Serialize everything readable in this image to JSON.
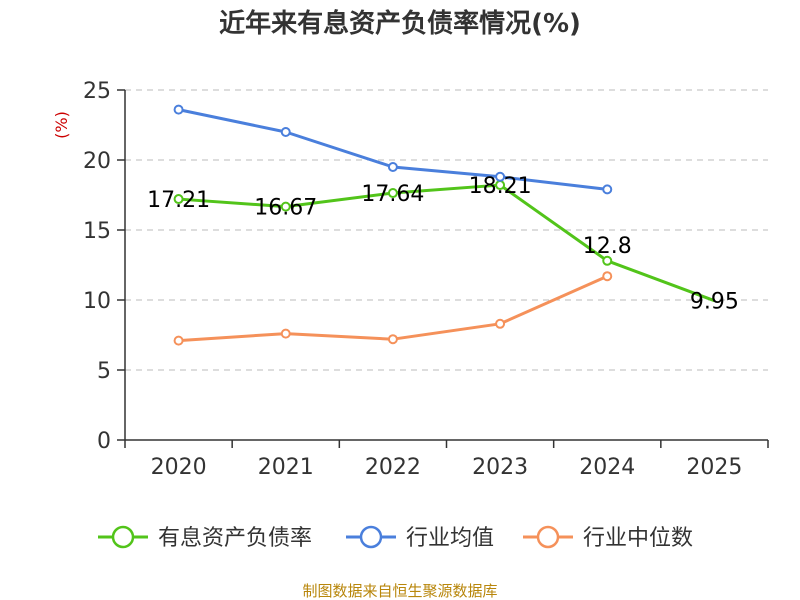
{
  "chart_data": {
    "type": "line",
    "title": "近年来有息资产负债率情况(%)",
    "ylabel": "(%)",
    "categories": [
      "2020",
      "2021",
      "2022",
      "2023",
      "2024",
      "2025"
    ],
    "y_ticks": [
      "0",
      "5",
      "10",
      "15",
      "20",
      "25"
    ],
    "ylim": [
      0,
      25
    ],
    "grid": "horizontal dashed",
    "legend_position": "bottom",
    "series": [
      {
        "name": "有息资产负债率",
        "color": "#52c41a",
        "values": [
          17.21,
          16.67,
          17.64,
          18.21,
          12.8,
          9.95
        ],
        "labels": [
          "17.21",
          "16.67",
          "17.64",
          "18.21",
          "12.8",
          "9.95"
        ]
      },
      {
        "name": "行业均值",
        "color": "#4a7fdc",
        "values": [
          23.6,
          22.0,
          19.5,
          18.8,
          17.9,
          null
        ]
      },
      {
        "name": "行业中位数",
        "color": "#f5915a",
        "values": [
          7.1,
          7.6,
          7.2,
          8.3,
          11.7,
          null
        ]
      }
    ],
    "source": "制图数据来自恒生聚源数据库"
  }
}
